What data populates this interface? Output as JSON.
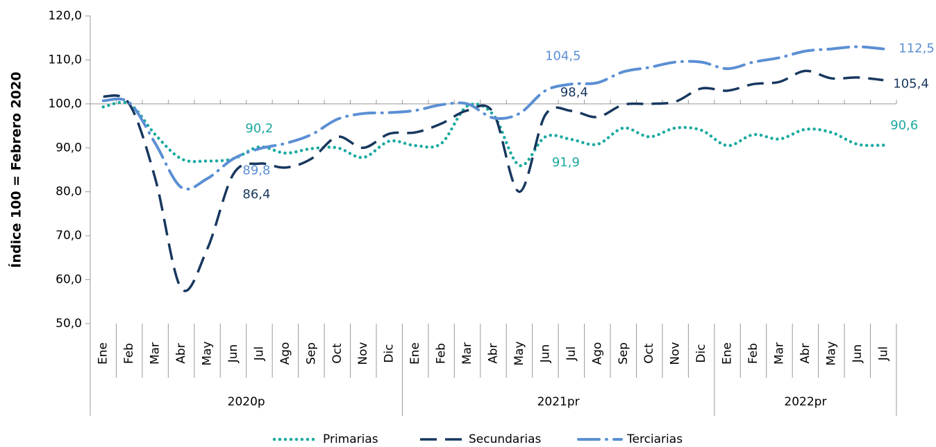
{
  "chart_data": {
    "type": "line",
    "y_axis_label": "Índice 100 = Febrero 2020",
    "groups": [
      {
        "label": "2020p",
        "categories": [
          "Ene",
          "Feb",
          "Mar",
          "Abr",
          "May",
          "Jun",
          "Jul",
          "Ago",
          "Sep",
          "Oct",
          "Nov",
          "Dic"
        ]
      },
      {
        "label": "2021pr",
        "categories": [
          "Ene",
          "Feb",
          "Mar",
          "Abr",
          "May",
          "Jun",
          "Jul",
          "Ago",
          "Sep",
          "Oct",
          "Nov",
          "Dic"
        ]
      },
      {
        "label": "2022pr",
        "categories": [
          "Ene",
          "Feb",
          "Mar",
          "Abr",
          "May",
          "Jun",
          "Jul"
        ]
      }
    ],
    "ylim": [
      50,
      120
    ],
    "yticks": [
      {
        "value": 50,
        "label": "50,0"
      },
      {
        "value": 60,
        "label": "60,0"
      },
      {
        "value": 70,
        "label": "70,0"
      },
      {
        "value": 80,
        "label": "80,0"
      },
      {
        "value": 90,
        "label": "90,0"
      },
      {
        "value": 100,
        "label": "100,0"
      },
      {
        "value": 110,
        "label": "110,0"
      },
      {
        "value": 120,
        "label": "120,0"
      }
    ],
    "x_axis_crossing": 100,
    "series": [
      {
        "name": "Primarias",
        "color": "#1aa9a0",
        "style": "dotted",
        "values": [
          99.3,
          100,
          93,
          87.5,
          87,
          87.5,
          90.2,
          88.8,
          89.8,
          90,
          87.8,
          91.5,
          90.5,
          91,
          99.5,
          97.5,
          86,
          92.5,
          91.9,
          90.8,
          94.5,
          92.5,
          94.5,
          94,
          90.5,
          93,
          92,
          94.2,
          93.5,
          90.8,
          90.6
        ],
        "value_labels": [
          null,
          null,
          null,
          null,
          null,
          null,
          "90,2",
          null,
          null,
          null,
          null,
          null,
          null,
          null,
          null,
          null,
          null,
          null,
          "91,9",
          null,
          null,
          null,
          null,
          null,
          null,
          null,
          null,
          null,
          null,
          null,
          "90,6"
        ]
      },
      {
        "name": "Secundarias",
        "color": "#17375e",
        "style": "dashed",
        "values": [
          101.7,
          100,
          83,
          58,
          67,
          84,
          86.4,
          85.5,
          87.5,
          92.5,
          90,
          93.2,
          93.5,
          95.5,
          98.5,
          98,
          80,
          97.5,
          98.4,
          97,
          99.8,
          100,
          100.5,
          103.5,
          103,
          104.5,
          105,
          107.5,
          105.8,
          106,
          105.4
        ],
        "value_labels": [
          null,
          null,
          null,
          null,
          null,
          null,
          "86,4",
          null,
          null,
          null,
          null,
          null,
          null,
          null,
          null,
          null,
          null,
          null,
          "98,4",
          null,
          null,
          null,
          null,
          null,
          null,
          null,
          null,
          null,
          null,
          null,
          "105,4"
        ]
      },
      {
        "name": "Terciarias",
        "color": "#5b8fd4",
        "style": "dashdot",
        "values": [
          100.7,
          100.3,
          91,
          81,
          83,
          87.5,
          89.8,
          91,
          93,
          96.5,
          97.8,
          98,
          98.5,
          99.8,
          100,
          96.8,
          97.8,
          103,
          104.5,
          104.8,
          107.3,
          108.3,
          109.5,
          109.5,
          108,
          109.5,
          110.5,
          112,
          112.5,
          113,
          112.5
        ],
        "value_labels": [
          null,
          null,
          null,
          null,
          null,
          null,
          "89,8",
          null,
          null,
          null,
          null,
          null,
          null,
          null,
          null,
          null,
          null,
          null,
          "104,5",
          null,
          null,
          null,
          null,
          null,
          null,
          null,
          null,
          null,
          null,
          null,
          "112,5"
        ]
      }
    ]
  }
}
